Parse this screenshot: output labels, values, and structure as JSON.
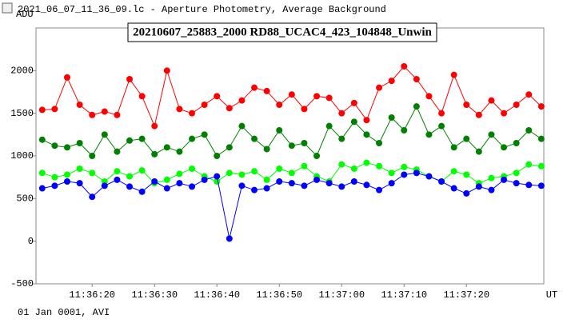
{
  "window_title": "2021_06_07_11_36_09.lc - Aperture Photometry, Average Background",
  "footer": "01 Jan 0001, AVI",
  "chart_data": {
    "type": "line",
    "title": "20210607_25883_2000 RD88_UCAC4_423_104848_Unwin",
    "ylabel": "ADU",
    "xlabel": "UT",
    "x": [
      12,
      14,
      16,
      18,
      20,
      22,
      24,
      26,
      28,
      30,
      32,
      34,
      36,
      38,
      40,
      42,
      44,
      46,
      48,
      50,
      52,
      54,
      56,
      58,
      60,
      62,
      64,
      66,
      68,
      70,
      72,
      74,
      76,
      78,
      80,
      82,
      84,
      86,
      88,
      90,
      92
    ],
    "series": [
      {
        "color": "#ff0000",
        "values": [
          1540,
          1550,
          1920,
          1600,
          1480,
          1520,
          1480,
          1900,
          1700,
          1350,
          2000,
          1550,
          1500,
          1600,
          1700,
          1560,
          1650,
          1800,
          1760,
          1600,
          1720,
          1550,
          1700,
          1680,
          1500,
          1620,
          1420,
          1800,
          1880,
          2050,
          1900,
          1700,
          1500,
          1950,
          1600,
          1480,
          1650,
          1500,
          1600,
          1720,
          1580
        ]
      },
      {
        "color": "#008000",
        "values": [
          1190,
          1120,
          1100,
          1150,
          1000,
          1250,
          1050,
          1180,
          1200,
          1020,
          1100,
          1050,
          1200,
          1250,
          1000,
          1100,
          1350,
          1200,
          1080,
          1300,
          1120,
          1150,
          1000,
          1350,
          1200,
          1400,
          1250,
          1150,
          1450,
          1300,
          1580,
          1250,
          1350,
          1100,
          1200,
          1050,
          1250,
          1100,
          1150,
          1300,
          1200
        ]
      },
      {
        "color": "#00ff00",
        "values": [
          800,
          750,
          780,
          850,
          800,
          700,
          820,
          760,
          830,
          680,
          720,
          790,
          850,
          760,
          700,
          800,
          780,
          820,
          720,
          850,
          800,
          880,
          760,
          700,
          900,
          850,
          920,
          880,
          800,
          870,
          840,
          760,
          700,
          820,
          780,
          680,
          740,
          760,
          800,
          900,
          880
        ]
      },
      {
        "color": "#0000ff",
        "values": [
          620,
          650,
          700,
          680,
          520,
          650,
          720,
          640,
          580,
          700,
          620,
          680,
          640,
          720,
          760,
          30,
          650,
          600,
          620,
          700,
          680,
          650,
          720,
          680,
          640,
          700,
          660,
          600,
          680,
          780,
          800,
          760,
          700,
          620,
          560,
          640,
          600,
          720,
          680,
          660,
          650
        ]
      }
    ],
    "xlim": [
      11,
      92.4
    ],
    "xticks": [
      {
        "value": 20,
        "label": "11:36:20"
      },
      {
        "value": 30,
        "label": "11:36:30"
      },
      {
        "value": 40,
        "label": "11:36:40"
      },
      {
        "value": 50,
        "label": "11:36:50"
      },
      {
        "value": 60,
        "label": "11:37:00"
      },
      {
        "value": 70,
        "label": "11:37:10"
      },
      {
        "value": 80,
        "label": "11:37:20"
      }
    ],
    "ylim": [
      -500,
      2500
    ],
    "yticks": [
      -500,
      0,
      500,
      1000,
      1500,
      2000
    ]
  }
}
